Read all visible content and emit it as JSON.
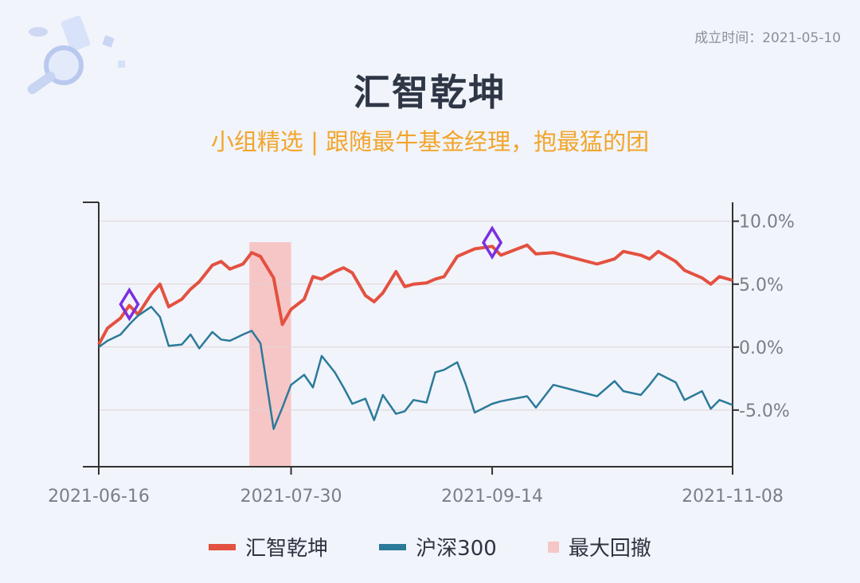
{
  "founded_text": "成立时间：2021-05-10",
  "title": "汇智乾坤",
  "subtitle": "小组精选 | 跟随最牛基金经理，抱最猛的团",
  "colors": {
    "fund": "#e45140",
    "index": "#2c7a9a",
    "drawdown": "#f6c6c6",
    "marker": "#7b2fe0",
    "axis": "#333333",
    "grid": "#dfd3d3"
  },
  "chart_data": {
    "type": "line",
    "x_ticks": [
      "2021-06-16",
      "2021-07-30",
      "2021-09-14",
      "2021-11-08"
    ],
    "x_range": [
      "2021-06-16",
      "2021-11-08"
    ],
    "y_ticks": [
      "10.0%",
      "5.0%",
      "0.0%",
      "-5.0%"
    ],
    "ylim": [
      -9.5,
      11.5
    ],
    "y_axis_position": "right",
    "series": [
      {
        "name": "汇智乾坤",
        "x": [
          "2021-06-16",
          "2021-06-18",
          "2021-06-21",
          "2021-06-23",
          "2021-06-25",
          "2021-06-28",
          "2021-06-30",
          "2021-07-02",
          "2021-07-05",
          "2021-07-07",
          "2021-07-09",
          "2021-07-12",
          "2021-07-14",
          "2021-07-16",
          "2021-07-19",
          "2021-07-21",
          "2021-07-23",
          "2021-07-26",
          "2021-07-28",
          "2021-07-30",
          "2021-08-02",
          "2021-08-04",
          "2021-08-06",
          "2021-08-09",
          "2021-08-11",
          "2021-08-13",
          "2021-08-16",
          "2021-08-18",
          "2021-08-20",
          "2021-08-23",
          "2021-08-25",
          "2021-08-27",
          "2021-08-30",
          "2021-09-01",
          "2021-09-03",
          "2021-09-06",
          "2021-09-08",
          "2021-09-10",
          "2021-09-14",
          "2021-09-16",
          "2021-09-22",
          "2021-09-24",
          "2021-09-28",
          "2021-10-08",
          "2021-10-12",
          "2021-10-14",
          "2021-10-18",
          "2021-10-20",
          "2021-10-22",
          "2021-10-26",
          "2021-10-28",
          "2021-11-01",
          "2021-11-03",
          "2021-11-05",
          "2021-11-08"
        ],
        "values": [
          0.2,
          1.5,
          2.3,
          3.3,
          2.6,
          4.2,
          5.0,
          3.2,
          3.8,
          4.6,
          5.2,
          6.5,
          6.8,
          6.2,
          6.6,
          7.5,
          7.2,
          5.5,
          1.8,
          3.0,
          3.8,
          5.6,
          5.4,
          6.0,
          6.3,
          5.9,
          4.1,
          3.6,
          4.3,
          6.0,
          4.8,
          5.0,
          5.1,
          5.4,
          5.6,
          7.2,
          7.5,
          7.8,
          8.0,
          7.3,
          8.1,
          7.4,
          7.5,
          6.6,
          7.0,
          7.6,
          7.3,
          7.0,
          7.6,
          6.8,
          6.1,
          5.5,
          5.0,
          5.6,
          5.3
        ]
      },
      {
        "name": "沪深300",
        "x": [
          "2021-06-16",
          "2021-06-18",
          "2021-06-21",
          "2021-06-23",
          "2021-06-25",
          "2021-06-28",
          "2021-06-30",
          "2021-07-02",
          "2021-07-05",
          "2021-07-07",
          "2021-07-09",
          "2021-07-12",
          "2021-07-14",
          "2021-07-16",
          "2021-07-19",
          "2021-07-21",
          "2021-07-23",
          "2021-07-26",
          "2021-07-28",
          "2021-07-30",
          "2021-08-02",
          "2021-08-04",
          "2021-08-06",
          "2021-08-09",
          "2021-08-11",
          "2021-08-13",
          "2021-08-16",
          "2021-08-18",
          "2021-08-20",
          "2021-08-23",
          "2021-08-25",
          "2021-08-27",
          "2021-08-30",
          "2021-09-01",
          "2021-09-03",
          "2021-09-06",
          "2021-09-08",
          "2021-09-10",
          "2021-09-14",
          "2021-09-16",
          "2021-09-22",
          "2021-09-24",
          "2021-09-28",
          "2021-10-08",
          "2021-10-12",
          "2021-10-14",
          "2021-10-18",
          "2021-10-20",
          "2021-10-22",
          "2021-10-26",
          "2021-10-28",
          "2021-11-01",
          "2021-11-03",
          "2021-11-05",
          "2021-11-08"
        ],
        "values": [
          0.0,
          0.5,
          1.0,
          1.8,
          2.5,
          3.2,
          2.4,
          0.1,
          0.2,
          1.0,
          -0.1,
          1.2,
          0.6,
          0.5,
          1.0,
          1.3,
          0.3,
          -6.5,
          -4.8,
          -3.0,
          -2.2,
          -3.2,
          -0.7,
          -2.0,
          -3.2,
          -4.5,
          -4.1,
          -5.8,
          -3.8,
          -5.3,
          -5.1,
          -4.2,
          -4.4,
          -2.0,
          -1.8,
          -1.2,
          -3.0,
          -5.2,
          -4.5,
          -4.3,
          -3.9,
          -4.8,
          -3.0,
          -3.9,
          -2.7,
          -3.5,
          -3.8,
          -3.0,
          -2.1,
          -2.8,
          -4.2,
          -3.5,
          -4.9,
          -4.2,
          -4.6
        ]
      }
    ],
    "drawdown_region": {
      "name": "最大回撤",
      "start": "2021-07-23",
      "end": "2021-07-30"
    },
    "markers": [
      {
        "x": "2021-06-23",
        "y": 3.4
      },
      {
        "x": "2021-09-14",
        "y": 8.3
      }
    ],
    "legend": [
      "汇智乾坤",
      "沪深300",
      "最大回撤"
    ],
    "legend_position": "bottom",
    "grid": "horizontal"
  }
}
